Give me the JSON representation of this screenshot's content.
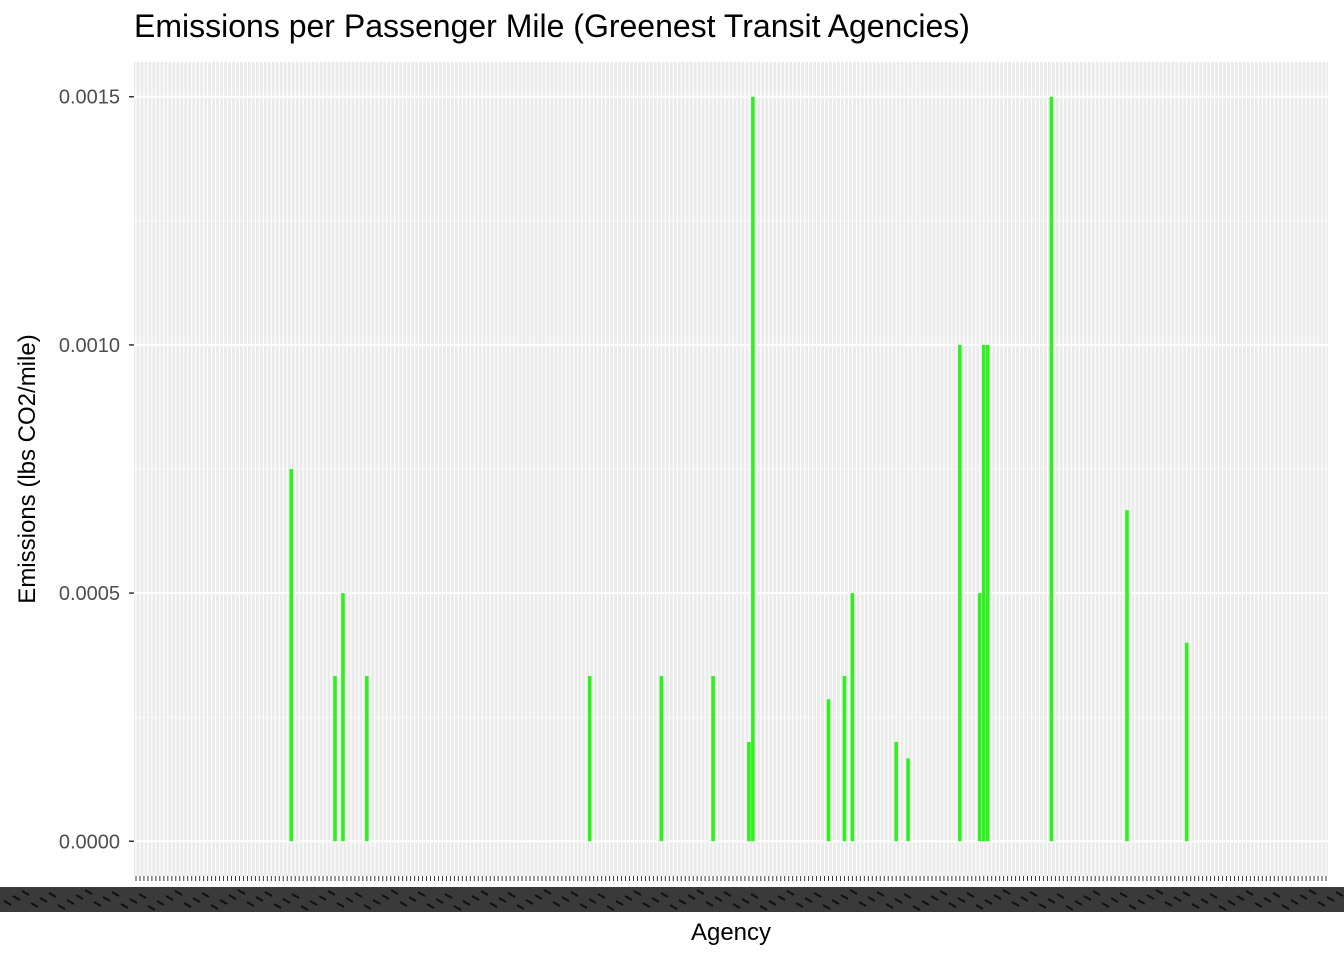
{
  "chart_data": {
    "type": "bar",
    "title": "Emissions per Passenger Mile (Greenest Transit Agencies)",
    "xlabel": "Agency",
    "ylabel": "Emissions (lbs CO2/mile)",
    "ylim": [
      -7e-05,
      0.00157
    ],
    "y_ticks": [
      {
        "value": 0.0,
        "label": "0.0000"
      },
      {
        "value": 0.0005,
        "label": "0.0005"
      },
      {
        "value": 0.001,
        "label": "0.0010"
      },
      {
        "value": 0.0015,
        "label": "0.0015"
      }
    ],
    "y_minor_ticks": [
      0.00025,
      0.00075,
      0.00125
    ],
    "n_categories": 300,
    "category_labels_legible": false,
    "bar_color": "#2EF21D",
    "panel_color": "#EBEBEB",
    "grid": true,
    "bars": [
      {
        "index": 39,
        "value": 0.00075
      },
      {
        "index": 50,
        "value": 0.000333
      },
      {
        "index": 52,
        "value": 0.0005
      },
      {
        "index": 58,
        "value": 0.000333
      },
      {
        "index": 114,
        "value": 0.000333
      },
      {
        "index": 132,
        "value": 0.000333
      },
      {
        "index": 145,
        "value": 0.000333
      },
      {
        "index": 154,
        "value": 0.0002
      },
      {
        "index": 155,
        "value": 0.0015
      },
      {
        "index": 174,
        "value": 0.000286
      },
      {
        "index": 178,
        "value": 0.000333
      },
      {
        "index": 180,
        "value": 0.0005
      },
      {
        "index": 191,
        "value": 0.0002
      },
      {
        "index": 194,
        "value": 0.000167
      },
      {
        "index": 207,
        "value": 0.001
      },
      {
        "index": 212,
        "value": 0.0005
      },
      {
        "index": 213,
        "value": 0.001
      },
      {
        "index": 214,
        "value": 0.001
      },
      {
        "index": 230,
        "value": 0.0015
      },
      {
        "index": 249,
        "value": 0.000667
      },
      {
        "index": 264,
        "value": 0.0004
      }
    ]
  }
}
